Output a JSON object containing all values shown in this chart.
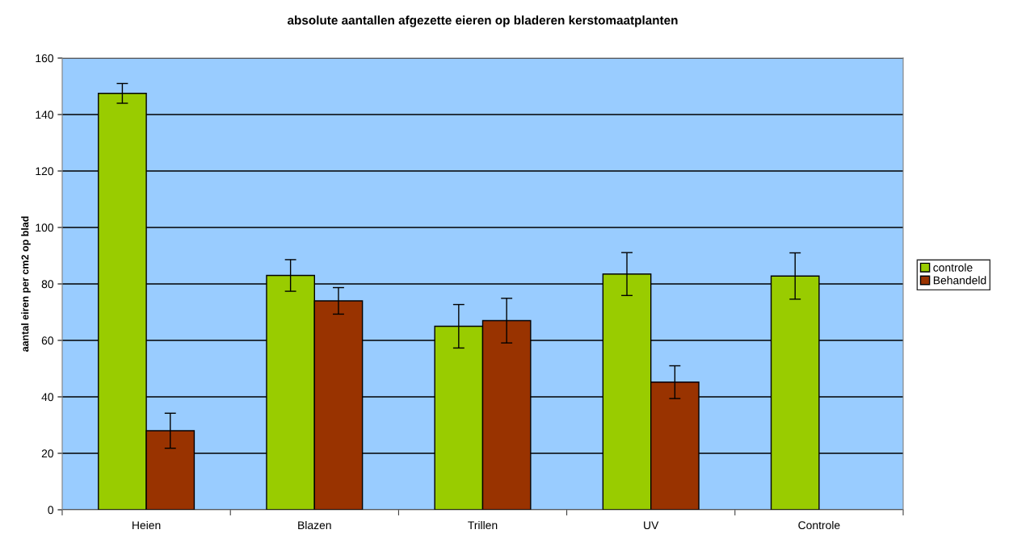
{
  "chart_data": {
    "type": "bar",
    "title": "absolute aantallen afgezette eieren op bladeren kerstomaatplanten",
    "ylabel": "aantal eiren per cm2 op blad",
    "categories": [
      "Heien",
      "Blazen",
      "Trillen",
      "UV",
      "Controle"
    ],
    "series": [
      {
        "name": "controle",
        "color": "#99cc00",
        "values": [
          147.5,
          83,
          65,
          83.5,
          82.8
        ],
        "errors": [
          3.5,
          5.6,
          7.7,
          7.6,
          8.2
        ]
      },
      {
        "name": "Behandeld",
        "color": "#993300",
        "values": [
          28,
          74,
          67,
          45.2,
          null
        ],
        "errors": [
          6.2,
          4.7,
          7.9,
          5.8,
          null
        ]
      }
    ],
    "ylim": [
      0,
      160
    ],
    "yticks": [
      0,
      20,
      40,
      60,
      80,
      100,
      120,
      140,
      160
    ],
    "grid": "y",
    "legend": "right"
  }
}
